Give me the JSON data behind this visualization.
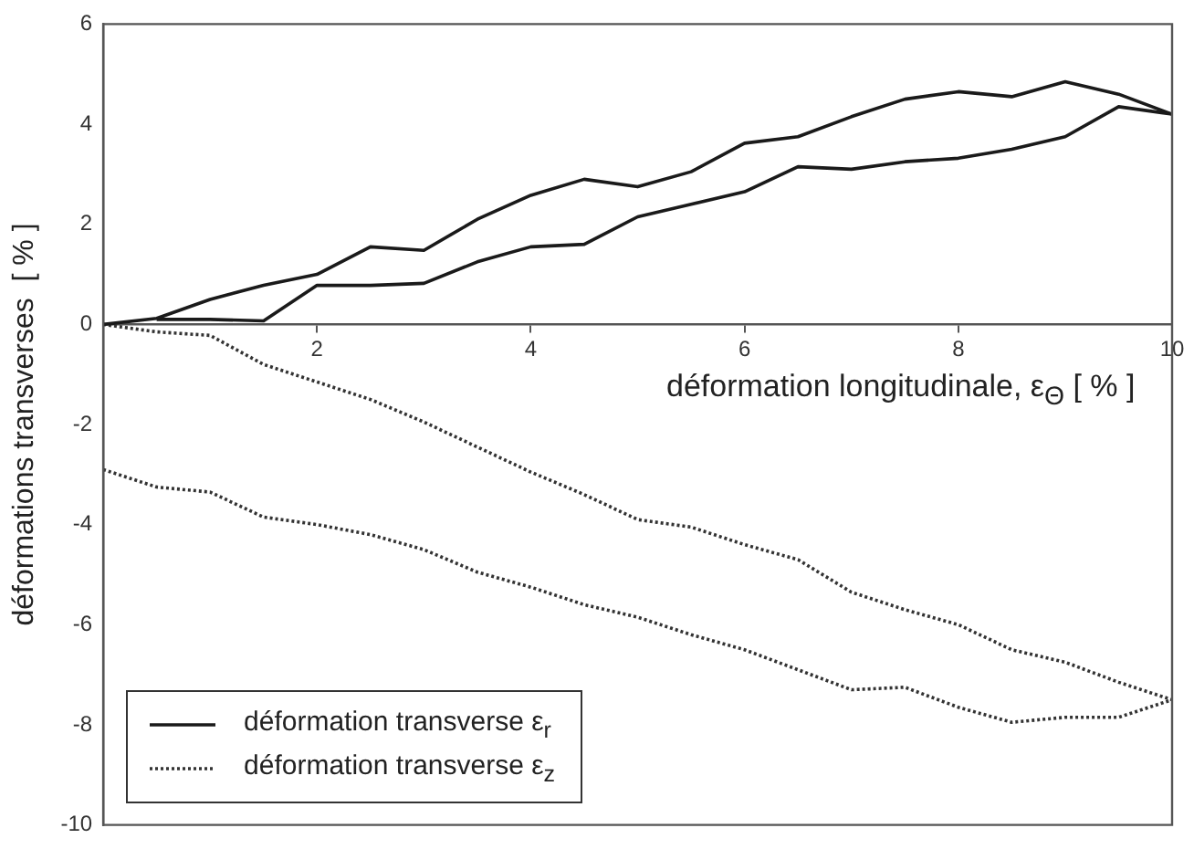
{
  "chart_data": {
    "type": "line",
    "xlabel": "déformation longitudinale,  ε$_{Θ}$  [ % ]",
    "ylabel": "déformations transverses  [ % ]",
    "xlim": [
      0,
      10
    ],
    "xticks": [
      2,
      4,
      6,
      8,
      10
    ],
    "ylim": [
      -10,
      6
    ],
    "yticks": [
      -10,
      -8,
      -6,
      -4,
      -2,
      0,
      2,
      4,
      6
    ],
    "grid": false,
    "legend": "bottom left",
    "marker": "none",
    "x": [
      0,
      0.5,
      1,
      1.5,
      2,
      2.5,
      3,
      3.5,
      4,
      4.5,
      5,
      5.5,
      6,
      6.5,
      7,
      7.5,
      8,
      8.5,
      9,
      9.5,
      10
    ],
    "series": [
      {
        "name": "déformation transverse  ε$_{r}$",
        "color": "#1a1a1a",
        "line_style": "solid",
        "values": [
          0,
          0.12,
          0.5,
          0.78,
          1.0,
          1.55,
          1.48,
          2.1,
          2.58,
          2.9,
          2.75,
          3.05,
          3.62,
          3.75,
          4.15,
          4.5,
          4.65,
          4.55,
          4.85,
          4.6,
          4.2
        ]
      },
      {
        "color": "#1a1a1a",
        "line_style": "solid",
        "values": [
          null,
          0.1,
          0.1,
          0.07,
          0.78,
          0.78,
          0.82,
          1.25,
          1.55,
          1.6,
          2.15,
          2.4,
          2.65,
          3.15,
          3.1,
          3.25,
          3.32,
          3.5,
          3.75,
          4.35,
          4.2
        ]
      },
      {
        "name": "déformation transverse  ε$_{z}$",
        "color": "#333333",
        "line_style": "dotted",
        "values": [
          0,
          -0.15,
          -0.22,
          -0.8,
          -1.15,
          -1.5,
          -1.95,
          -2.45,
          -2.95,
          -3.4,
          -3.9,
          -4.05,
          -4.4,
          -4.7,
          -5.35,
          -5.7,
          -6.0,
          -6.5,
          -6.75,
          -7.15,
          -7.5
        ]
      },
      {
        "color": "#333333",
        "line_style": "dotted",
        "values": [
          -2.9,
          -3.25,
          -3.35,
          -3.85,
          -4.0,
          -4.2,
          -4.5,
          -4.95,
          -5.25,
          -5.6,
          -5.85,
          -6.2,
          -6.5,
          -6.9,
          -7.3,
          -7.25,
          -7.65,
          -7.95,
          -7.85,
          -7.85,
          -7.5
        ]
      }
    ]
  }
}
